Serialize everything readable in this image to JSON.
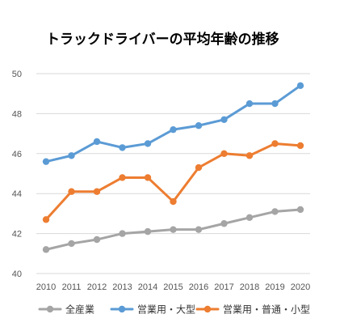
{
  "chart_data": {
    "type": "line",
    "title": "トラックドライバーの平均年齢の推移",
    "x": [
      "2010",
      "2011",
      "2012",
      "2013",
      "2014",
      "2015",
      "2016",
      "2017",
      "2018",
      "2019",
      "2020"
    ],
    "yticks": [
      "40",
      "42",
      "44",
      "46",
      "48",
      "50"
    ],
    "ylim": [
      40,
      50
    ],
    "grid": true,
    "legend_position": "bottom",
    "series": [
      {
        "name": "全産業",
        "color": "#a5a5a5",
        "values": [
          41.2,
          41.5,
          41.7,
          42.0,
          42.1,
          42.2,
          42.2,
          42.5,
          42.8,
          43.1,
          43.2
        ]
      },
      {
        "name": "営業用・大型",
        "color": "#5b9bd5",
        "values": [
          45.6,
          45.9,
          46.6,
          46.3,
          46.5,
          47.2,
          47.4,
          47.7,
          48.5,
          48.5,
          49.4
        ]
      },
      {
        "name": "営業用・普通・小型",
        "color": "#ed7d31",
        "values": [
          42.7,
          44.1,
          44.1,
          44.8,
          44.8,
          43.6,
          45.3,
          46.0,
          45.9,
          46.5,
          46.4
        ]
      }
    ]
  }
}
